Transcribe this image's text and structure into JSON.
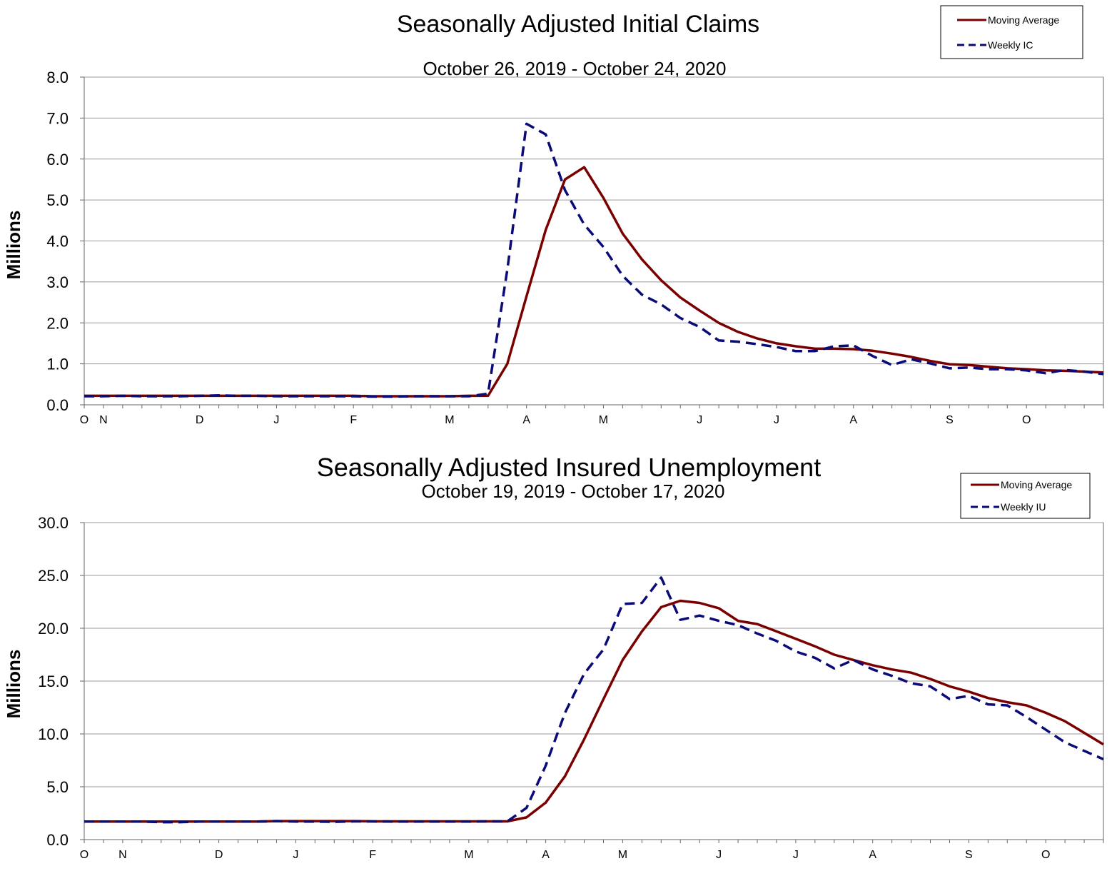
{
  "chart_data": [
    {
      "type": "line",
      "title": "Seasonally Adjusted Initial Claims",
      "subtitle": "October 26, 2019 - October 24, 2020",
      "ylabel": "Millions",
      "xlabel": "",
      "ylim": [
        0,
        8
      ],
      "y_ticks": [
        "0.0",
        "1.0",
        "2.0",
        "3.0",
        "4.0",
        "5.0",
        "6.0",
        "7.0",
        "8.0"
      ],
      "month_labels": [
        "O",
        "N",
        "D",
        "J",
        "F",
        "M",
        "A",
        "M",
        "J",
        "J",
        "A",
        "S",
        "O"
      ],
      "month_label_weeks": [
        0,
        1,
        6,
        10,
        14,
        19,
        23,
        27,
        32,
        36,
        40,
        45,
        49
      ],
      "grid": true,
      "legend_position": "top-right",
      "series": [
        {
          "name": "Moving Average",
          "color": "#7a0000",
          "style": "solid",
          "values": [
            0.22,
            0.22,
            0.22,
            0.22,
            0.22,
            0.22,
            0.22,
            0.22,
            0.22,
            0.22,
            0.22,
            0.22,
            0.22,
            0.22,
            0.22,
            0.21,
            0.21,
            0.21,
            0.21,
            0.21,
            0.22,
            0.22,
            1.0,
            2.65,
            4.27,
            5.5,
            5.8,
            5.05,
            4.18,
            3.55,
            3.04,
            2.62,
            2.3,
            2.0,
            1.78,
            1.62,
            1.5,
            1.43,
            1.37,
            1.37,
            1.36,
            1.32,
            1.25,
            1.17,
            1.07,
            0.99,
            0.97,
            0.93,
            0.89,
            0.87,
            0.84,
            0.83,
            0.81,
            0.79
          ]
        },
        {
          "name": "Weekly IC",
          "color": "#0a0a78",
          "style": "dashed",
          "values": [
            0.21,
            0.21,
            0.22,
            0.21,
            0.21,
            0.21,
            0.22,
            0.23,
            0.22,
            0.22,
            0.21,
            0.21,
            0.21,
            0.21,
            0.21,
            0.2,
            0.2,
            0.21,
            0.21,
            0.21,
            0.21,
            0.27,
            3.3,
            6.86,
            6.6,
            5.24,
            4.4,
            3.85,
            3.15,
            2.69,
            2.45,
            2.12,
            1.9,
            1.57,
            1.54,
            1.48,
            1.41,
            1.31,
            1.31,
            1.43,
            1.45,
            1.19,
            0.97,
            1.11,
            1.01,
            0.89,
            0.91,
            0.87,
            0.87,
            0.84,
            0.77,
            0.85,
            0.81,
            0.75
          ]
        }
      ]
    },
    {
      "type": "line",
      "title": "Seasonally Adjusted Insured Unemployment",
      "subtitle": "October 19, 2019 - October 17, 2020",
      "ylabel": "Millions",
      "xlabel": "",
      "ylim": [
        0,
        30
      ],
      "y_ticks": [
        "0.0",
        "5.0",
        "10.0",
        "15.0",
        "20.0",
        "25.0",
        "30.0"
      ],
      "month_labels": [
        "O",
        "N",
        "D",
        "J",
        "F",
        "M",
        "A",
        "M",
        "J",
        "J",
        "A",
        "S",
        "O"
      ],
      "month_label_weeks": [
        0,
        2,
        7,
        11,
        15,
        20,
        24,
        28,
        33,
        37,
        41,
        46,
        50
      ],
      "grid": true,
      "legend_position": "top-right",
      "series": [
        {
          "name": "Moving Average",
          "color": "#7a0000",
          "style": "solid",
          "values": [
            1.7,
            1.7,
            1.7,
            1.7,
            1.7,
            1.7,
            1.7,
            1.7,
            1.7,
            1.7,
            1.75,
            1.75,
            1.75,
            1.75,
            1.75,
            1.72,
            1.72,
            1.72,
            1.72,
            1.72,
            1.72,
            1.72,
            1.72,
            2.1,
            3.5,
            6.0,
            9.5,
            13.3,
            17.0,
            19.7,
            22.0,
            22.6,
            22.4,
            21.9,
            20.7,
            20.4,
            19.7,
            19.0,
            18.3,
            17.5,
            17.0,
            16.5,
            16.1,
            15.8,
            15.2,
            14.5,
            14.0,
            13.4,
            13.0,
            12.7,
            12.0,
            11.2,
            10.1,
            9.0
          ]
        },
        {
          "name": "Weekly IU",
          "color": "#0a0a78",
          "style": "dashed",
          "values": [
            1.7,
            1.7,
            1.7,
            1.7,
            1.65,
            1.65,
            1.7,
            1.7,
            1.7,
            1.7,
            1.75,
            1.7,
            1.7,
            1.68,
            1.72,
            1.72,
            1.7,
            1.7,
            1.7,
            1.7,
            1.7,
            1.72,
            1.72,
            3.0,
            7.0,
            12.0,
            15.7,
            18.0,
            22.3,
            22.4,
            24.8,
            20.8,
            21.2,
            20.7,
            20.3,
            19.5,
            18.8,
            17.8,
            17.2,
            16.2,
            17.0,
            16.1,
            15.5,
            14.8,
            14.5,
            13.3,
            13.6,
            12.8,
            12.7,
            11.6,
            10.4,
            9.2,
            8.4,
            7.6
          ]
        }
      ]
    }
  ]
}
